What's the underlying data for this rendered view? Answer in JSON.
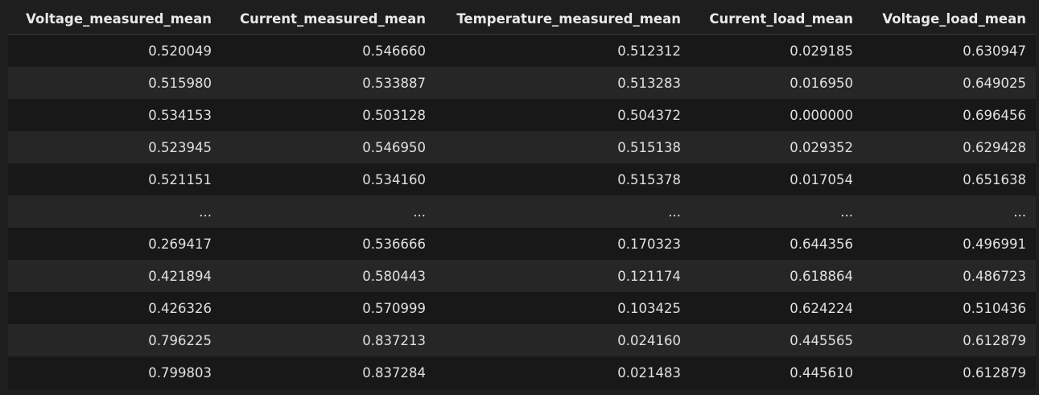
{
  "table": {
    "columns": [
      "Voltage_measured_mean",
      "Current_measured_mean",
      "Temperature_measured_mean",
      "Current_load_mean",
      "Voltage_load_mean"
    ],
    "rows": [
      [
        "0.520049",
        "0.546660",
        "0.512312",
        "0.029185",
        "0.630947"
      ],
      [
        "0.515980",
        "0.533887",
        "0.513283",
        "0.016950",
        "0.649025"
      ],
      [
        "0.534153",
        "0.503128",
        "0.504372",
        "0.000000",
        "0.696456"
      ],
      [
        "0.523945",
        "0.546950",
        "0.515138",
        "0.029352",
        "0.629428"
      ],
      [
        "0.521151",
        "0.534160",
        "0.515378",
        "0.017054",
        "0.651638"
      ],
      [
        "...",
        "...",
        "...",
        "...",
        "..."
      ],
      [
        "0.269417",
        "0.536666",
        "0.170323",
        "0.644356",
        "0.496991"
      ],
      [
        "0.421894",
        "0.580443",
        "0.121174",
        "0.618864",
        "0.486723"
      ],
      [
        "0.426326",
        "0.570999",
        "0.103425",
        "0.624224",
        "0.510436"
      ],
      [
        "0.796225",
        "0.837213",
        "0.024160",
        "0.445565",
        "0.612879"
      ],
      [
        "0.799803",
        "0.837284",
        "0.021483",
        "0.445610",
        "0.612879"
      ]
    ]
  }
}
